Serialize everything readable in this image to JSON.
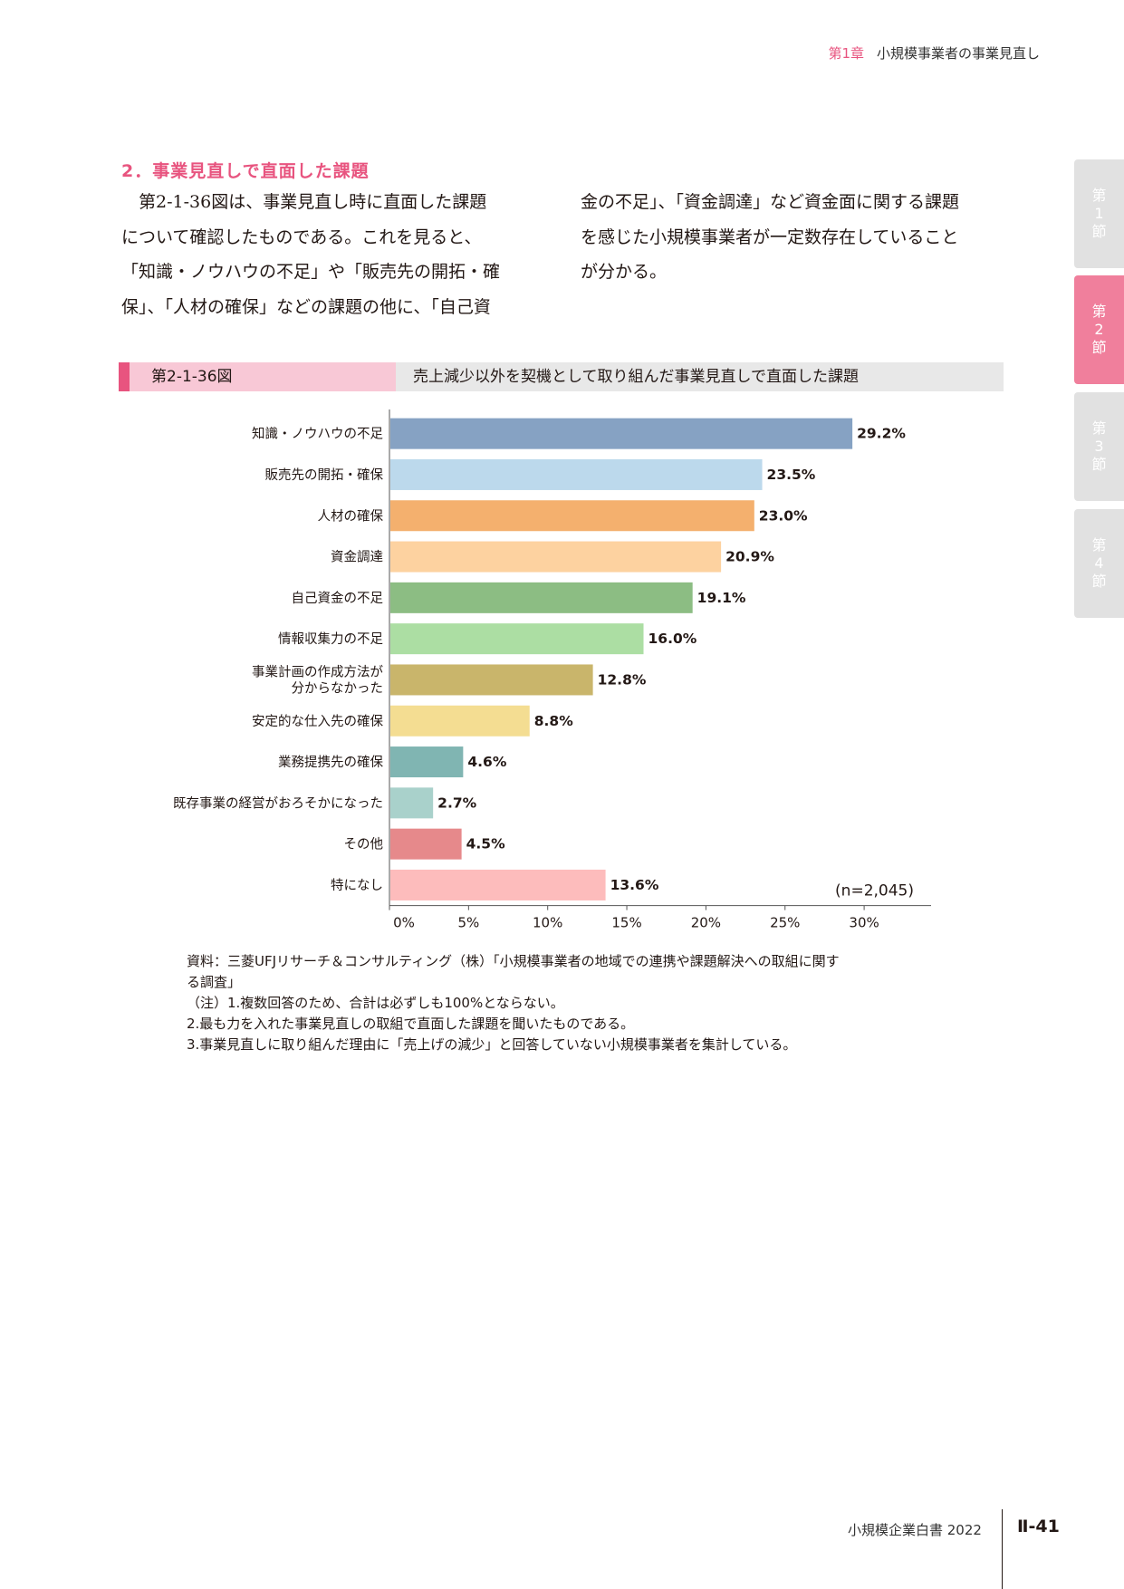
{
  "header": {
    "chapter": "第1章",
    "title": "小規模事業者の事業見直し"
  },
  "section": {
    "title": "2．事業見直しで直面した課題",
    "left_lines": [
      "　第2-1-36図は、事業見直し時に直面した課題",
      "について確認したものである。これを見ると、",
      "「知識・ノウハウの不足」や「販売先の開拓・確",
      "保」、「人材の確保」などの課題の他に、「自己資"
    ],
    "right_lines": [
      "金の不足」、「資金調達」など資金面に関する課題",
      "を感じた小規模事業者が一定数存在していること",
      "が分かる。"
    ]
  },
  "side_tabs": [
    {
      "label": [
        "第",
        "1",
        "節"
      ],
      "active": false
    },
    {
      "label": [
        "第",
        "2",
        "節"
      ],
      "active": true
    },
    {
      "label": [
        "第",
        "3",
        "節"
      ],
      "active": false
    },
    {
      "label": [
        "第",
        "4",
        "節"
      ],
      "active": false
    }
  ],
  "figure": {
    "number": "第2-1-36図",
    "title": "売上減少以外を契機として取り組んだ事業見直しで直面した課題"
  },
  "chart_data": {
    "type": "bar",
    "orientation": "horizontal",
    "categories": [
      "知識・ノウハウの不足",
      "販売先の開拓・確保",
      "人材の確保",
      "資金調達",
      "自己資金の不足",
      "情報収集力の不足",
      "事業計画の作成方法が\n分からなかった",
      "安定的な仕入先の確保",
      "業務提携先の確保",
      "既存事業の経営がおろそかになった",
      "その他",
      "特になし"
    ],
    "values": [
      29.2,
      23.5,
      23.0,
      20.9,
      19.1,
      16.0,
      12.8,
      8.8,
      4.6,
      2.7,
      4.5,
      13.6
    ],
    "value_labels": [
      "29.2%",
      "23.5%",
      "23.0%",
      "20.9%",
      "19.1%",
      "16.0%",
      "12.8%",
      "8.8%",
      "4.6%",
      "2.7%",
      "4.5%",
      "13.6%"
    ],
    "colors": [
      "#86a2c3",
      "#bcd9ec",
      "#f4b06e",
      "#fdd2a0",
      "#8cbd83",
      "#acdea3",
      "#c9b56b",
      "#f4dd92",
      "#80b5b2",
      "#a9d1cb",
      "#e6898b",
      "#fdbcbc"
    ],
    "x_ticks": [
      "0%",
      "5%",
      "10%",
      "15%",
      "20%",
      "25%",
      "30%"
    ],
    "xlim": [
      0,
      34
    ],
    "sample_note": "(n=2,045)"
  },
  "notes": [
    "資料：三菱UFJリサーチ＆コンサルティング（株）「小規模事業者の地域での連携や課題解決への取組に関す",
    "る調査」",
    "（注）1.複数回答のため、合計は必ずしも100%とならない。",
    "2.最も力を入れた事業見直しの取組で直面した課題を聞いたものである。",
    "3.事業見直しに取り組んだ理由に「売上げの減少」と回答していない小規模事業者を集計している。"
  ],
  "footer": {
    "title": "小規模企業白書 2022",
    "page": "Ⅱ-41"
  }
}
